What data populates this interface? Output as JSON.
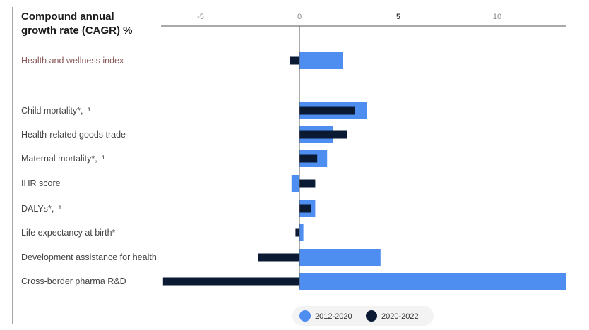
{
  "colors": {
    "series_2012_2020": "#4d8ef0",
    "series_2020_2022": "#0b1a33",
    "axis": "#555555",
    "highlight_label": "#8a5a5a"
  },
  "chart_data": {
    "type": "bar",
    "orientation": "horizontal",
    "title_line1": "Compound annual",
    "title_line2": "growth rate (CAGR) %",
    "xlim": [
      -7,
      13.5
    ],
    "ticks": [
      {
        "value": -5,
        "label": "-5",
        "bold": false
      },
      {
        "value": 0,
        "label": "0",
        "bold": false
      },
      {
        "value": 5,
        "label": "5",
        "bold": true
      },
      {
        "value": 10,
        "label": "10",
        "bold": false
      }
    ],
    "categories": [
      {
        "label": "Health and wellness index",
        "highlight": true
      },
      {
        "label": "Child mortality*,⁻¹",
        "highlight": false
      },
      {
        "label": "Health-related goods trade",
        "highlight": false
      },
      {
        "label": "Maternal mortality*,⁻¹",
        "highlight": false
      },
      {
        "label": "IHR score",
        "highlight": false
      },
      {
        "label": "DALYs*,⁻¹",
        "highlight": false
      },
      {
        "label": "Life expectancy at birth*",
        "highlight": false
      },
      {
        "label": "Development assistance for health",
        "highlight": false
      },
      {
        "label": "Cross-border pharma R&D",
        "highlight": false
      }
    ],
    "series": [
      {
        "name": "2012-2020",
        "values": [
          2.2,
          3.4,
          1.7,
          1.4,
          -0.4,
          0.8,
          0.2,
          4.1,
          13.5
        ]
      },
      {
        "name": "2020-2022",
        "values": [
          -0.5,
          2.8,
          2.4,
          0.9,
          0.8,
          0.6,
          -0.2,
          -2.1,
          -6.9
        ]
      }
    ],
    "legend": [
      "2012-2020",
      "2020-2022"
    ],
    "legend_position": "bottom-right"
  }
}
